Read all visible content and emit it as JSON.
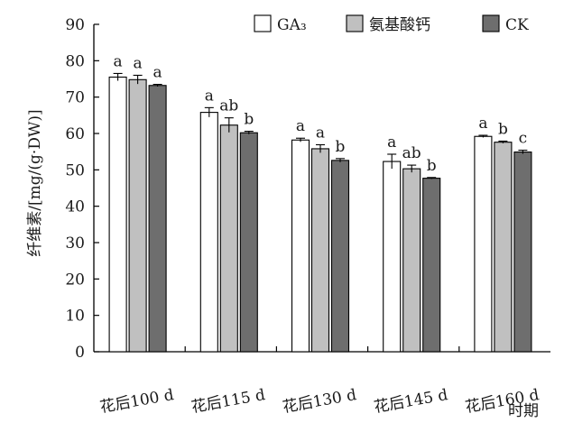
{
  "chart_data": {
    "type": "bar",
    "title": "",
    "ylabel": "纤维素/[mg/(g·DW)]",
    "xlabel": "时期",
    "ylim": [
      0,
      90
    ],
    "yticks": [
      "0",
      "10",
      "20",
      "30",
      "40",
      "50",
      "60",
      "70",
      "80",
      "90"
    ],
    "grid": false,
    "legend_position": "top-right",
    "categories": [
      "花后100 d",
      "花后115 d",
      "花后130 d",
      "花后145 d",
      "花后160 d"
    ],
    "series": [
      {
        "name": "GA₃",
        "color": "#ffffff",
        "values": [
          75.5,
          65.8,
          58.2,
          52.3,
          59.2
        ],
        "errors": [
          1.0,
          1.3,
          0.5,
          2.0,
          0.3
        ],
        "labels": [
          "a",
          "a",
          "a",
          "a",
          "a"
        ]
      },
      {
        "name": "氨基酸钙",
        "color": "#c0c0c0",
        "values": [
          74.8,
          62.3,
          55.8,
          50.3,
          57.6
        ],
        "errors": [
          1.2,
          2.0,
          1.1,
          1.0,
          0.3
        ],
        "labels": [
          "a",
          "ab",
          "a",
          "ab",
          "b"
        ]
      },
      {
        "name": "CK",
        "color": "#6e6e6e",
        "values": [
          73.2,
          60.2,
          52.6,
          47.7,
          54.9
        ],
        "errors": [
          0.3,
          0.4,
          0.5,
          0.2,
          0.5
        ],
        "labels": [
          "a",
          "b",
          "b",
          "b",
          "c"
        ]
      }
    ]
  }
}
